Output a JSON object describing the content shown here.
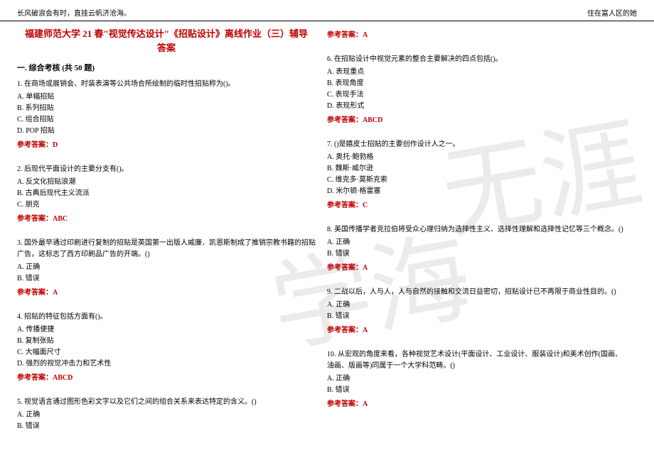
{
  "header": {
    "left": "长风破浪会有时，直挂云帆济沧海。",
    "right": "住在富人区的她"
  },
  "watermark": {
    "text1": "学海",
    "text2": "无涯"
  },
  "title": "福建师范大学 21 春\"视觉传达设计\"《招贴设计》离线作业（三）辅导答案",
  "section": "一. 综合考核 (共 50 题)",
  "answer_label": "参考答案：",
  "left_questions": [
    {
      "stem": "1. 在商场或展销会、时装表演等公共场合所绘制的临时性招贴称为()。",
      "opts": [
        "A. 单幅招贴",
        "B. 系列招贴",
        "C. 组合招贴",
        "D. POP 招贴"
      ],
      "answer": "D"
    },
    {
      "stem": "2. 后现代平面设计的主要分支有()。",
      "opts": [
        "A. 反文化招贴浪潮",
        "B. 古典后现代主义流派",
        "C. 朋克"
      ],
      "answer": "ABC"
    },
    {
      "stem": "3. 国外最早通过印刷进行复制的招贴是英国第一出版人威廉．凯恩斯制成了推销宗教书籍的招贴广告，这标志了西方印刷品广告的开端。()",
      "opts": [
        "A. 正确",
        "B. 错误"
      ],
      "answer": "A"
    },
    {
      "stem": "4. 招贴的特征包括方面有()。",
      "opts": [
        "A. 传播便捷",
        "B. 复制张贴",
        "C. 大幅面尺寸",
        "D. 强烈的视觉冲击力和艺术性"
      ],
      "answer": "ABCD"
    },
    {
      "stem": "5. 视觉语言通过图形色彩文字以及它们之间的组合关系来表达特定的含义。()",
      "opts": [
        "A. 正确",
        "B. 错误"
      ],
      "answer": ""
    }
  ],
  "right_questions": [
    {
      "stem": "",
      "opts": [],
      "answer": "A",
      "answer_only": true
    },
    {
      "stem": "6. 在招贴设计中视觉元素的整合主要解决的四点包括()。",
      "opts": [
        "A. 表现重点",
        "B. 表现角度",
        "C. 表现手法",
        "D. 表现形式"
      ],
      "answer": "ABCD"
    },
    {
      "stem": "7. ()是嬉皮士招贴的主要创作设计人之一。",
      "opts": [
        "A. 奥托·鲍勃格",
        "B. 魏斯·威尔逊",
        "C. 维克多·莫斯克索",
        "D. 米尔顿·格雷塞"
      ],
      "answer": "C"
    },
    {
      "stem": "8. 美国传播学者克拉伯将受众心理归纳为选择性主义、选择性理解和选择性记忆等三个概念。()",
      "opts": [
        "A. 正确",
        "B. 错误"
      ],
      "answer": "A"
    },
    {
      "stem": "9. 二战以后，人与人，人与自然的接触和交流日益密切，招贴设计已不再限于商业性目的。()",
      "opts": [
        "A. 正确",
        "B. 错误"
      ],
      "answer": "A"
    },
    {
      "stem": "10. 从宏观的角度来看，各种视觉艺术设计(平面设计、工业设计、服装设计)和美术创作(国画、油画、版画等)同属于一个大学科范畴。()",
      "opts": [
        "A. 正确",
        "B. 错误"
      ],
      "answer": "A"
    }
  ]
}
